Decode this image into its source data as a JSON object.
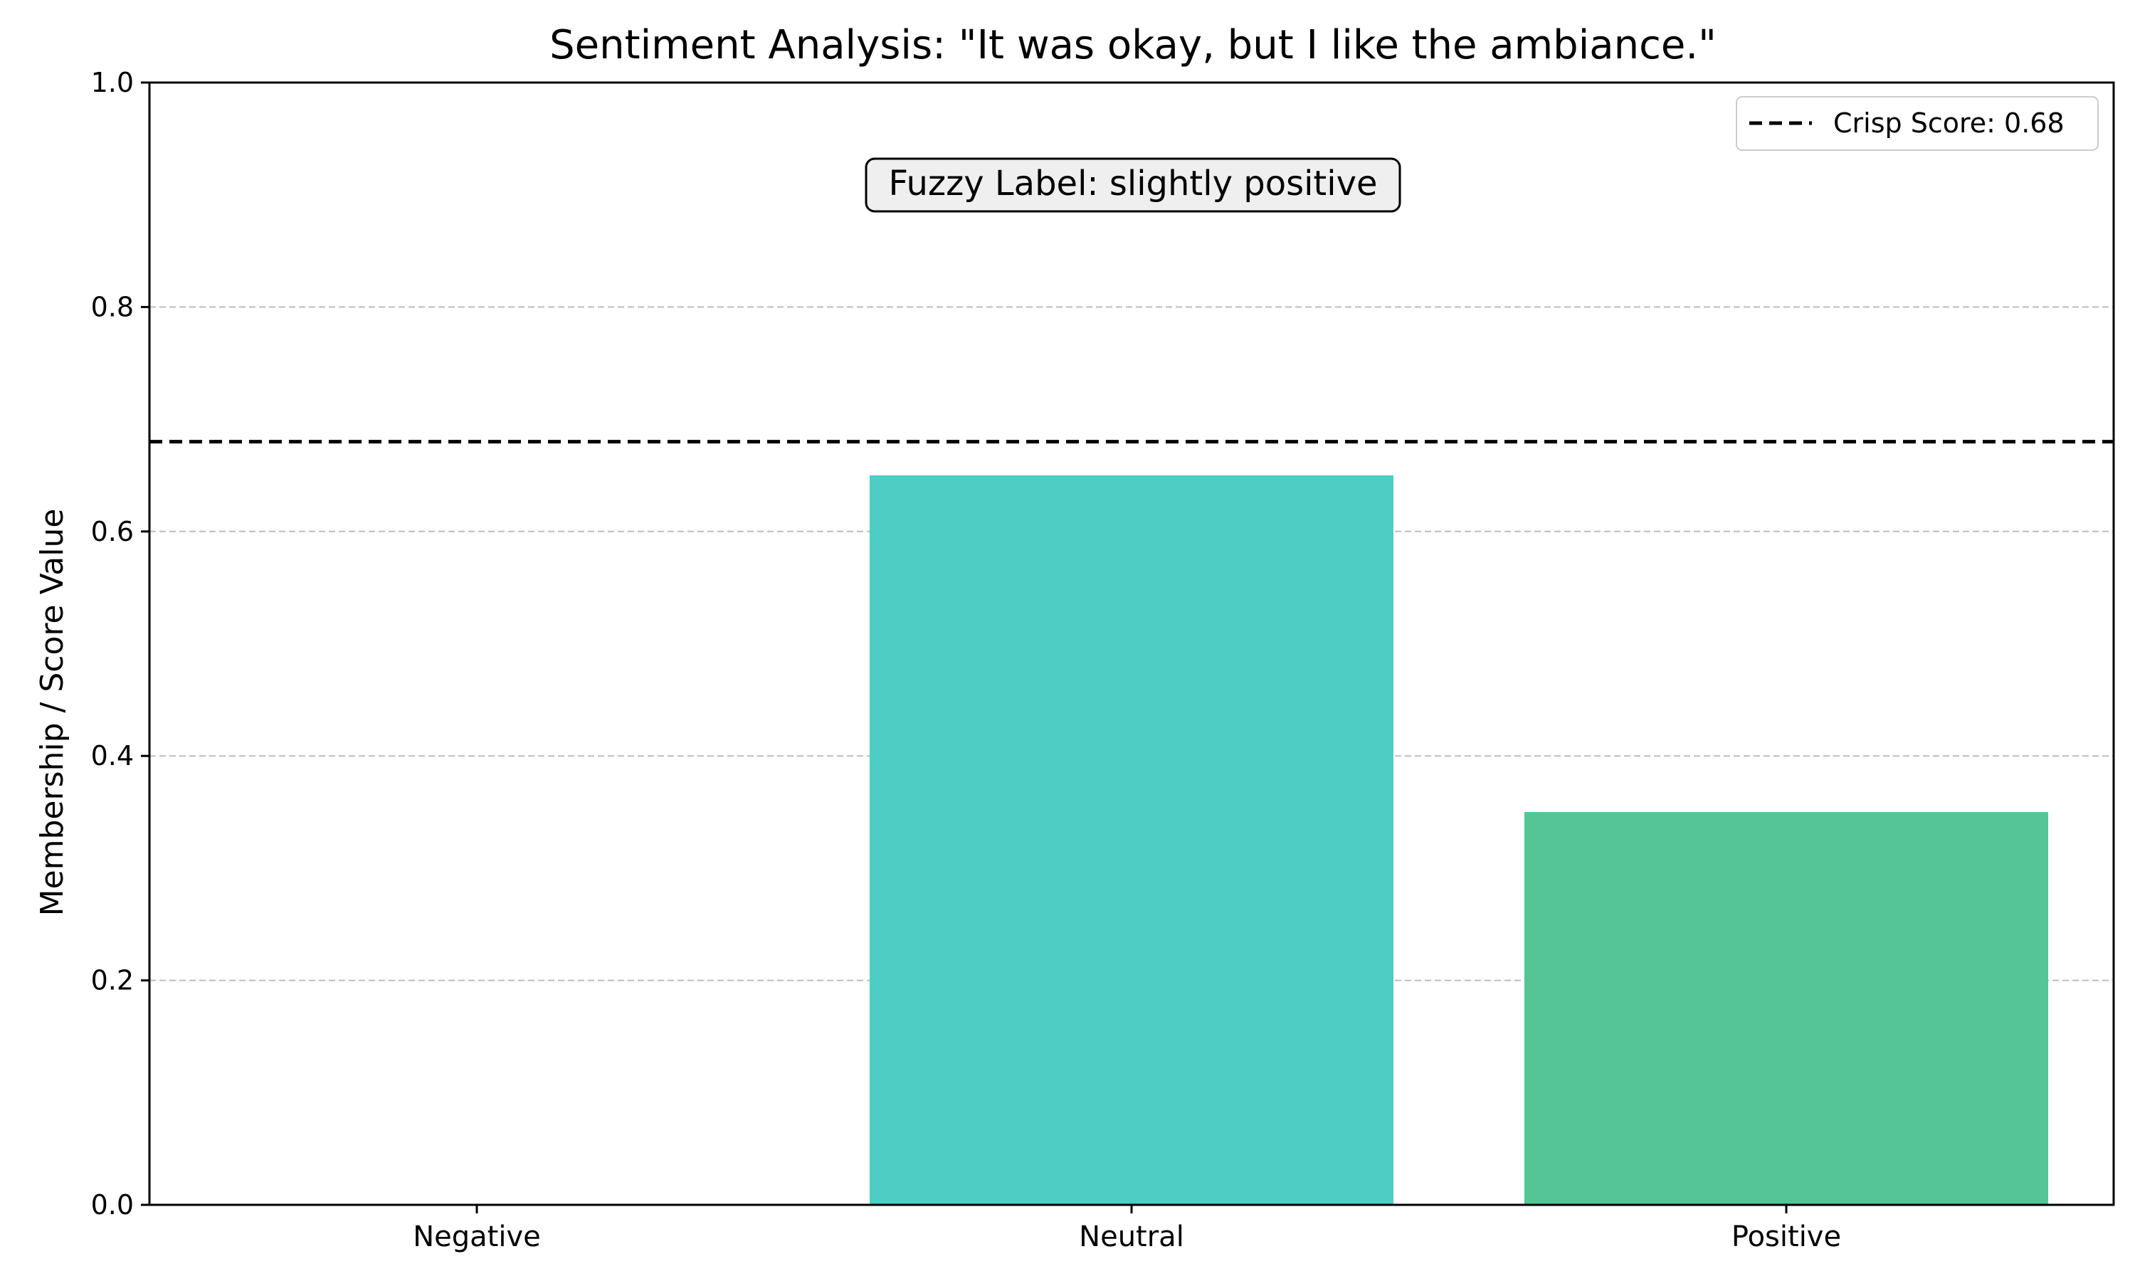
{
  "chart_data": {
    "type": "bar",
    "title": "Sentiment Analysis: \"It was okay, but I like the ambiance.\"",
    "xlabel": "",
    "ylabel": "Membership / Score Value",
    "categories": [
      "Negative",
      "Neutral",
      "Positive"
    ],
    "values": [
      0.0,
      0.65,
      0.35
    ],
    "bar_colors": [
      "#FF6B6B",
      "#4ECDC4",
      "#55C595"
    ],
    "ylim": [
      0,
      1.0
    ],
    "yticks": [
      "0.0",
      "0.2",
      "0.4",
      "0.6",
      "0.8",
      "1.0"
    ],
    "grid": true,
    "reference_line": {
      "value": 0.68,
      "label": "Crisp Score: 0.68",
      "style": "dashed",
      "color": "#000000"
    },
    "annotation": "Fuzzy Label: slightly positive",
    "legend_placement": "top-right"
  }
}
